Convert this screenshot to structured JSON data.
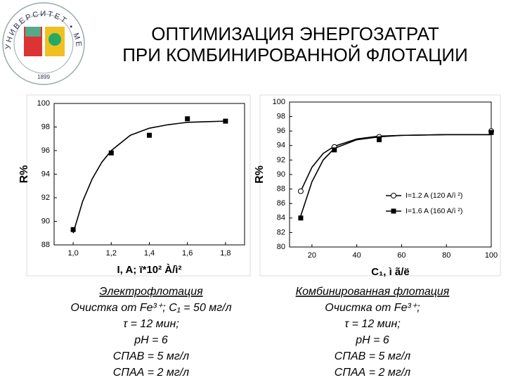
{
  "title": [
    "ОПТИМИЗАЦИЯ ЭНЕРГОЗАТРАТ",
    "ПРИ КОМБИНИРОВАННОЙ ФЛОТАЦИИ"
  ],
  "logo": {
    "top": "УНИВЕРСИТЕТ • МЕНДЕЛЕЕВА",
    "year": "1899"
  },
  "chart_data": [
    {
      "type": "scatter",
      "ylabel": "R%",
      "xlabel": "I, A; ï*10² À/ì²",
      "xlim": [
        0.9,
        1.9
      ],
      "xticks": [
        {
          "value": 1.0,
          "label": "1,0"
        },
        {
          "value": 1.2,
          "label": "1,2"
        },
        {
          "value": 1.4,
          "label": "1,4"
        },
        {
          "value": 1.6,
          "label": "1,6"
        },
        {
          "value": 1.8,
          "label": "1,8"
        }
      ],
      "ylim": [
        88,
        100
      ],
      "yticks": [
        88,
        90,
        92,
        94,
        96,
        98,
        100
      ],
      "series": [
        {
          "marker": "square",
          "color": "#000000",
          "x": [
            1.0,
            1.2,
            1.4,
            1.6,
            1.8
          ],
          "values": [
            89.3,
            95.8,
            97.3,
            98.7,
            98.5
          ],
          "curve": {
            "x": [
              1.0,
              1.05,
              1.1,
              1.15,
              1.2,
              1.3,
              1.4,
              1.5,
              1.6,
              1.7,
              1.8
            ],
            "y": [
              89.0,
              91.7,
              93.6,
              95.0,
              96.0,
              97.3,
              97.9,
              98.2,
              98.4,
              98.45,
              98.5
            ]
          }
        }
      ],
      "caption": [
        "Электрофлотация",
        "Очистка от Fe³⁺; C₁ = 50 мг/л",
        "τ = 12 мин;",
        "pH = 6",
        "CПАВ = 5 мг/л",
        "CПАА = 2 мг/л"
      ]
    },
    {
      "type": "scatter",
      "ylabel": "R%",
      "xlabel": "C₁, ì ã/ë",
      "legend": "right",
      "xlim": [
        10,
        100
      ],
      "xticks": [
        20,
        40,
        60,
        80,
        100
      ],
      "ylim": [
        80,
        100
      ],
      "yticks": [
        80,
        82,
        84,
        86,
        88,
        90,
        92,
        94,
        96,
        98,
        100
      ],
      "series": [
        {
          "name": "I=1.2 A (120 A/ì ²)",
          "marker": "circle-open",
          "color": "#000000",
          "x": [
            15,
            30,
            50,
            100
          ],
          "values": [
            87.7,
            93.8,
            95.2,
            96.0
          ],
          "curve": {
            "x": [
              15,
              20,
              25,
              30,
              40,
              50,
              60,
              80,
              100
            ],
            "y": [
              87.7,
              91.0,
              92.9,
              93.9,
              94.9,
              95.3,
              95.4,
              95.5,
              95.5
            ]
          }
        },
        {
          "name": "I=1.6 A (160 A/ì ²)",
          "marker": "square",
          "color": "#000000",
          "x": [
            15,
            30,
            50,
            100
          ],
          "values": [
            84.0,
            93.4,
            94.8,
            95.8
          ],
          "curve": {
            "x": [
              15,
              20,
              25,
              30,
              40,
              50,
              60,
              80,
              100
            ],
            "y": [
              84.3,
              89.0,
              92.0,
              93.6,
              94.8,
              95.2,
              95.4,
              95.5,
              95.5
            ]
          }
        }
      ],
      "caption": [
        "Комбинированная флотация",
        "Очистка от Fe³⁺;",
        "τ = 12 мин;",
        "pH = 6",
        "CПАВ = 5 мг/л",
        "CПАА = 2 мг/л"
      ]
    }
  ]
}
